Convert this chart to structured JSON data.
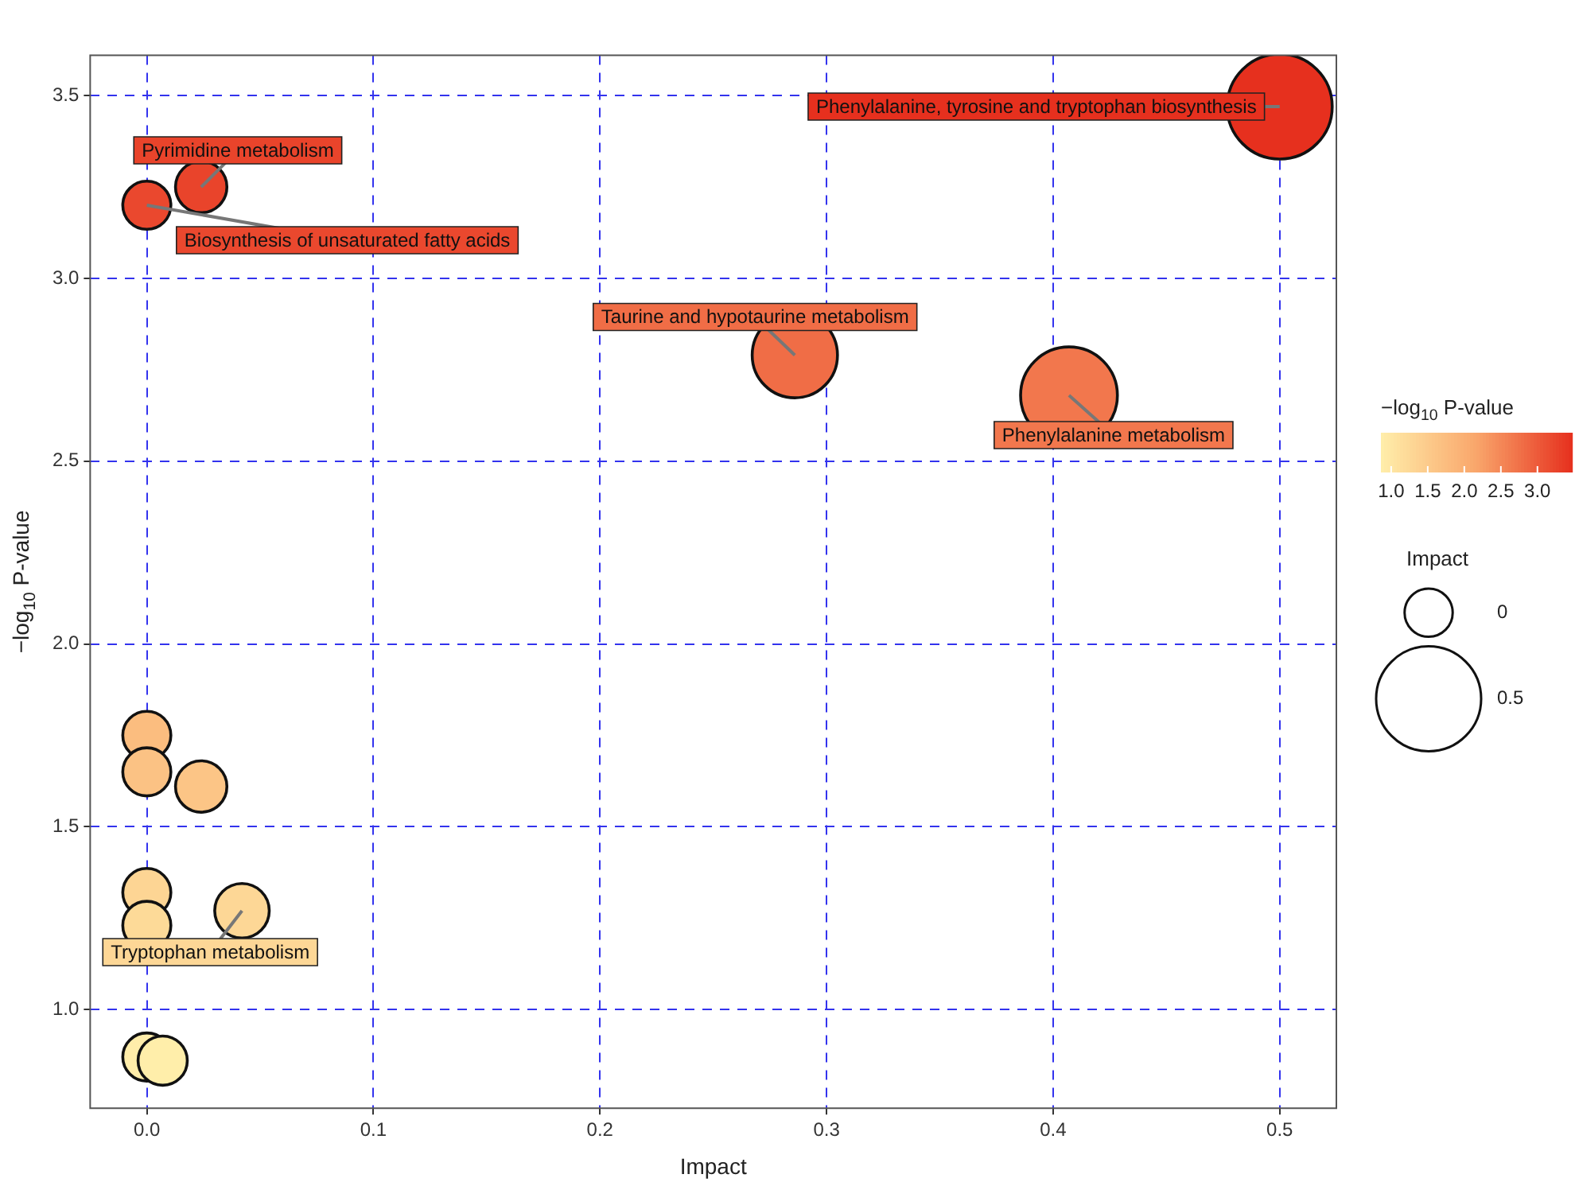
{
  "chart_data": {
    "type": "bubble",
    "xlabel": "Impact",
    "ylabel": "−log$_{10}$ P-value",
    "clabel": "−log$_{10}$ P-value",
    "legend_title": "Impact",
    "x": [
      0.5,
      0.024,
      0,
      0.286,
      0.407,
      0,
      0,
      0.024,
      0,
      0,
      0.042,
      0,
      0.007
    ],
    "values": [
      3.47,
      3.25,
      3.2,
      2.79,
      2.68,
      1.75,
      1.65,
      1.61,
      1.32,
      1.23,
      1.27,
      0.87,
      0.86
    ],
    "sizes": [
      1,
      0.24,
      0.21,
      0.66,
      0.85,
      0.21,
      0.21,
      0.24,
      0.21,
      0.21,
      0.27,
      0.21,
      0.22
    ],
    "cvalues": [
      3.47,
      3.25,
      3.2,
      2.79,
      2.68,
      1.75,
      1.65,
      1.61,
      1.32,
      1.23,
      1.27,
      0.87,
      0.86
    ],
    "size_legend": [
      {
        "value": 0.21,
        "label": "0"
      },
      {
        "value": 1,
        "label": "0.5"
      }
    ],
    "clim": [
      0.86,
      3.47
    ],
    "cticks": [
      {
        "value": 1,
        "label": "1.0"
      },
      {
        "value": 1.5,
        "label": "1.5"
      },
      {
        "value": 2,
        "label": "2.0"
      },
      {
        "value": 2.5,
        "label": "2.5"
      },
      {
        "value": 3,
        "label": "3.0"
      }
    ],
    "xlim": [
      -0.025,
      0.525
    ],
    "xticks": [
      {
        "value": 0,
        "label": "0.0"
      },
      0.1,
      0.2,
      0.3,
      0.4,
      0.5
    ],
    "ylim": [
      0.73,
      3.61
    ],
    "yticks": [
      {
        "value": 1,
        "label": "1.0"
      },
      1.5,
      {
        "value": 2,
        "label": "2.0"
      },
      2.5,
      {
        "value": 3,
        "label": "3.0"
      },
      3.5
    ],
    "annotations": [
      {
        "text": "Phenylalanine, tyrosine and tryptophan biosynthesis",
        "x": 0.5,
        "y": 3.47
      },
      {
        "text": "Pyrimidine metabolism",
        "x": 0.024,
        "y": 3.25
      },
      {
        "text": "Biosynthesis of unsaturated fatty acids",
        "x": 0,
        "y": 3.2
      },
      {
        "text": "Taurine and hypotaurine metabolism",
        "x": 0.286,
        "y": 2.79
      },
      {
        "text": "Phenylalanine metabolism",
        "x": 0.407,
        "y": 2.68
      },
      {
        "text": "Tryptophan metabolism",
        "x": 0.042,
        "y": 1.27
      }
    ],
    "grid": true,
    "marker": "circle"
  }
}
